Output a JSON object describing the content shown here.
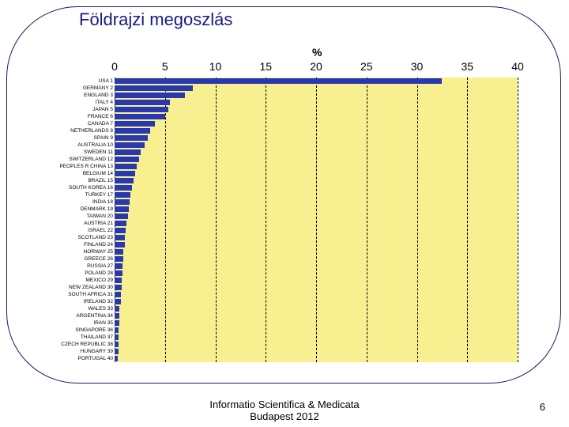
{
  "title": "Földrajzi megoszlás",
  "footer_line1": "Informatio Scientifica & Medicata",
  "footer_line2": "Budapest 2012",
  "page_number": "6",
  "chart": {
    "type": "bar",
    "axis_title": "%",
    "bar_color": "#2838b0",
    "plot_background": "#f8f090",
    "grid_color": "#000000",
    "xlim": [
      0,
      40
    ],
    "xtick_step": 5,
    "xticks": [
      {
        "value": 0,
        "label": "0"
      },
      {
        "value": 5,
        "label": "5"
      },
      {
        "value": 10,
        "label": "10"
      },
      {
        "value": 15,
        "label": "15"
      },
      {
        "value": 20,
        "label": "20"
      },
      {
        "value": 25,
        "label": "25"
      },
      {
        "value": 30,
        "label": "30"
      },
      {
        "value": 35,
        "label": "35"
      },
      {
        "value": 40,
        "label": "40"
      }
    ],
    "rows": [
      {
        "label": "USA 1",
        "value": 32.5
      },
      {
        "label": "GERMANY 2",
        "value": 7.8
      },
      {
        "label": "ENGLAND 3",
        "value": 7.0
      },
      {
        "label": "ITALY 4",
        "value": 5.5
      },
      {
        "label": "JAPAN 5",
        "value": 5.3
      },
      {
        "label": "FRANCE 6",
        "value": 5.0
      },
      {
        "label": "CANADA 7",
        "value": 4.0
      },
      {
        "label": "NETHERLANDS 8",
        "value": 3.5
      },
      {
        "label": "SPAIN 9",
        "value": 3.3
      },
      {
        "label": "AUSTRALIA 10",
        "value": 3.0
      },
      {
        "label": "SWEDEN 11",
        "value": 2.6
      },
      {
        "label": "SWITZERLAND 12",
        "value": 2.4
      },
      {
        "label": "PEOPLES R CHINA 13",
        "value": 2.2
      },
      {
        "label": "BELGIUM 14",
        "value": 2.0
      },
      {
        "label": "BRAZIL 15",
        "value": 1.9
      },
      {
        "label": "SOUTH KOREA 16",
        "value": 1.7
      },
      {
        "label": "TURKEY 17",
        "value": 1.6
      },
      {
        "label": "INDIA 18",
        "value": 1.5
      },
      {
        "label": "DENMARK 19",
        "value": 1.4
      },
      {
        "label": "TAIWAN 20",
        "value": 1.3
      },
      {
        "label": "AUSTRIA 21",
        "value": 1.2
      },
      {
        "label": "ISRAEL 22",
        "value": 1.1
      },
      {
        "label": "SCOTLAND 23",
        "value": 1.0
      },
      {
        "label": "FINLAND 24",
        "value": 1.0
      },
      {
        "label": "NORWAY 25",
        "value": 0.9
      },
      {
        "label": "GREECE 26",
        "value": 0.9
      },
      {
        "label": "RUSSIA 27",
        "value": 0.8
      },
      {
        "label": "POLAND 28",
        "value": 0.8
      },
      {
        "label": "MEXICO 29",
        "value": 0.7
      },
      {
        "label": "NEW ZEALAND 30",
        "value": 0.7
      },
      {
        "label": "SOUTH AFRICA 31",
        "value": 0.6
      },
      {
        "label": "IRELAND 32",
        "value": 0.6
      },
      {
        "label": "WALES 33",
        "value": 0.5
      },
      {
        "label": "ARGENTINA 34",
        "value": 0.5
      },
      {
        "label": "IRAN 35",
        "value": 0.5
      },
      {
        "label": "SINGAPORE 36",
        "value": 0.4
      },
      {
        "label": "THAILAND 37",
        "value": 0.4
      },
      {
        "label": "CZECH REPUBLIC 38",
        "value": 0.4
      },
      {
        "label": "HUNGARY 39",
        "value": 0.4
      },
      {
        "label": "PORTUGAL 40",
        "value": 0.3
      }
    ]
  }
}
